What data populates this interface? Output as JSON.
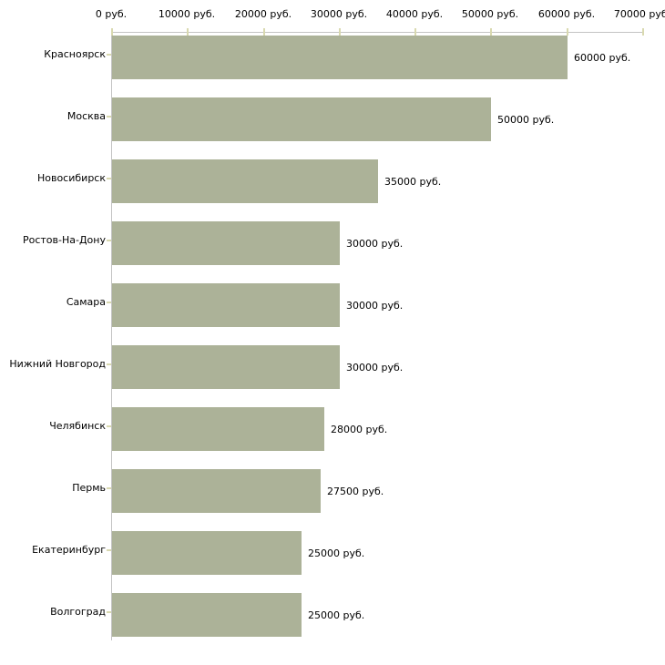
{
  "chart_data": {
    "type": "bar",
    "orientation": "horizontal",
    "title": "",
    "xlabel": "",
    "ylabel": "",
    "grid": false,
    "legend": false,
    "categories": [
      "Красноярск",
      "Москва",
      "Новосибирск",
      "Ростов-На-Дону",
      "Самара",
      "Нижний Новгород",
      "Челябинск",
      "Пермь",
      "Екатеринбург",
      "Волгоград"
    ],
    "values": [
      60000,
      50000,
      35000,
      30000,
      30000,
      30000,
      28000,
      27500,
      25000,
      25000
    ],
    "value_labels": [
      "60000 руб.",
      "50000 руб.",
      "35000 руб.",
      "30000 руб.",
      "30000 руб.",
      "30000 руб.",
      "28000 руб.",
      "27500 руб.",
      "25000 руб.",
      "25000 руб."
    ],
    "x_axis": {
      "min": 0,
      "max": 70000,
      "tick_step": 10000,
      "position": "top",
      "tick_labels": [
        "0 руб.",
        "10000 руб.",
        "20000 руб.",
        "30000 руб.",
        "40000 руб.",
        "50000 руб.",
        "60000 руб.",
        "70000 руб."
      ]
    },
    "colors": {
      "bar": "#acb298",
      "axis_line": "#c3c3c3",
      "tick": "#d9d9b0",
      "text": "#000000",
      "background": "#ffffff"
    }
  }
}
